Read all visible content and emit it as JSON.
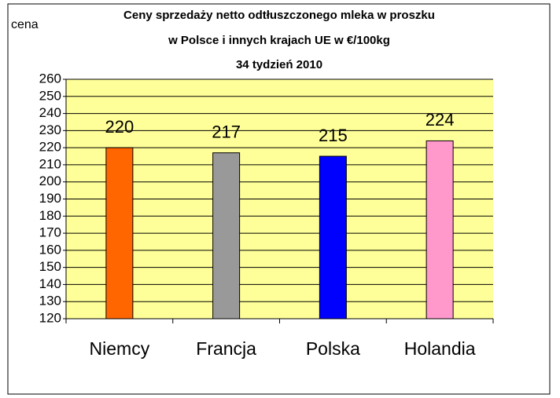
{
  "chart_data": {
    "type": "bar",
    "title": [
      "Ceny sprzedaży netto odtłuszczonego mleka w proszku",
      "w Polsce i innych krajach UE w €/100kg",
      "34 tydzień 2010"
    ],
    "y_label": "cena",
    "categories": [
      "Niemcy",
      "Francja",
      "Polska",
      "Holandia"
    ],
    "values": [
      220,
      217,
      215,
      224
    ],
    "colors": [
      "#ff6600",
      "#999999",
      "#0000ff",
      "#ff99cc"
    ],
    "ylim": [
      120,
      260
    ],
    "yticks": [
      120,
      130,
      140,
      150,
      160,
      170,
      180,
      190,
      200,
      210,
      220,
      230,
      240,
      250,
      260
    ],
    "grid": true,
    "plot_background": "#ffff99"
  }
}
